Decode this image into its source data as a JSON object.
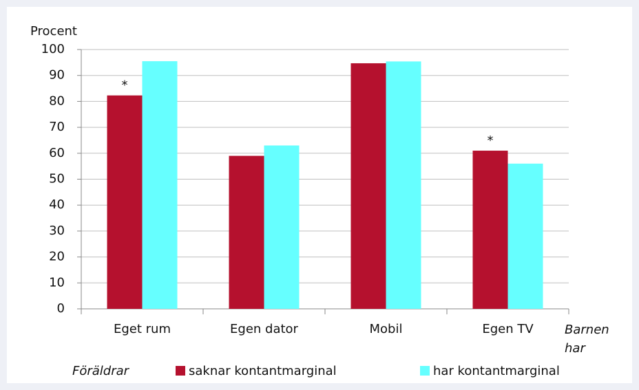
{
  "chart_data": {
    "type": "bar",
    "y_label": "Procent",
    "x_label": "Barnen har",
    "legend_title": "Föräldrar",
    "categories": [
      "Eget rum",
      "Egen dator",
      "Mobil",
      "Egen TV"
    ],
    "series": [
      {
        "name": "saknar kontantmarginal",
        "color": "#b5112e",
        "values": [
          82.3,
          59,
          94.7,
          61
        ],
        "annotations": [
          "*",
          null,
          null,
          "*"
        ]
      },
      {
        "name": "har kontantmarginal",
        "color": "#66ffff",
        "values": [
          95.5,
          63,
          95.4,
          56
        ]
      }
    ],
    "ylim": [
      0,
      100
    ],
    "yticks": [
      0,
      10,
      20,
      30,
      40,
      50,
      60,
      70,
      80,
      90,
      100
    ],
    "grid": true
  }
}
